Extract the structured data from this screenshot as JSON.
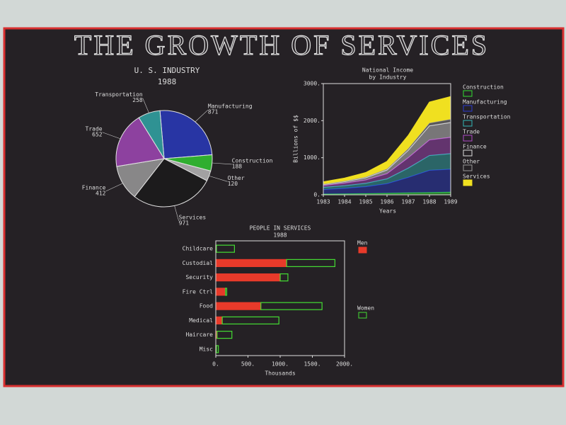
{
  "title": "THE GROWTH OF SERVICES",
  "chart_data": [
    {
      "type": "pie",
      "title": "U. S. INDUSTRY",
      "subtitle": "1988",
      "categories": [
        "Manufacturing",
        "Construction",
        "Other",
        "Services",
        "Finance",
        "Trade",
        "Transportation"
      ],
      "values": [
        871,
        188,
        120,
        971,
        412,
        652,
        258
      ],
      "colors": [
        "#2a3ccf",
        "#33dd33",
        "#cccccc",
        "#1a1a1a",
        "#aaaaaa",
        "#b04cc8",
        "#33b8b8"
      ]
    },
    {
      "type": "area",
      "title": "National Income",
      "subtitle": "by Industry",
      "ylabel": "Billions of $$",
      "xlabel": "Years",
      "x": [
        1983,
        1984,
        1985,
        1986,
        1987,
        1988,
        1989
      ],
      "xlim": [
        1983,
        1989
      ],
      "xticks": [
        1983,
        1984,
        1985,
        1986,
        1987,
        1988,
        1989
      ],
      "ylim": [
        0,
        3000
      ],
      "yticks": [
        {
          "value": 0,
          "label": "0."
        },
        {
          "value": 1000,
          "label": "1000."
        },
        {
          "value": 2000,
          "label": "2000."
        },
        {
          "value": 3000,
          "label": "3000."
        }
      ],
      "series": [
        {
          "name": "Construction",
          "color": "#33dd33",
          "values": [
            20,
            25,
            30,
            40,
            50,
            60,
            70
          ]
        },
        {
          "name": "Manufacturing",
          "color": "#2a3ccf",
          "values": [
            120,
            150,
            190,
            260,
            420,
            600,
            620
          ]
        },
        {
          "name": "Transportation",
          "color": "#33b8b8",
          "values": [
            60,
            70,
            90,
            130,
            250,
            400,
            420
          ]
        },
        {
          "name": "Trade",
          "color": "#b04cc8",
          "values": [
            50,
            70,
            90,
            140,
            280,
            420,
            440
          ]
        },
        {
          "name": "Finance",
          "color": "#dddddd",
          "values": [
            30,
            40,
            60,
            100,
            200,
            380,
            400
          ]
        },
        {
          "name": "Other",
          "color": "#999999",
          "values": [
            10,
            15,
            20,
            30,
            50,
            80,
            90
          ]
        },
        {
          "name": "Services",
          "color": "#f0e020",
          "values": [
            60,
            80,
            120,
            200,
            350,
            560,
            610
          ]
        }
      ]
    },
    {
      "type": "stacked-barh",
      "title": "PEOPLE IN SERVICES",
      "subtitle": "1988",
      "xlabel": "Thousands",
      "categories": [
        "Childcare",
        "Custodial",
        "Security",
        "Fire Ctrl",
        "Food",
        "Medical",
        "Haircare",
        "Misc"
      ],
      "xlim": [
        0,
        2000
      ],
      "xticks": [
        {
          "value": 0,
          "label": "0."
        },
        {
          "value": 500,
          "label": "500."
        },
        {
          "value": 1000,
          "label": "1000."
        },
        {
          "value": 1500,
          "label": "1500."
        },
        {
          "value": 2000,
          "label": "2000."
        }
      ],
      "series": [
        {
          "name": "Men",
          "color": "#e83a2a",
          "values": [
            10,
            1100,
            1000,
            150,
            700,
            100,
            20,
            10
          ]
        },
        {
          "name": "Women",
          "color": "#44dd33",
          "values": [
            280,
            750,
            120,
            20,
            950,
            880,
            230,
            30
          ]
        }
      ]
    }
  ]
}
